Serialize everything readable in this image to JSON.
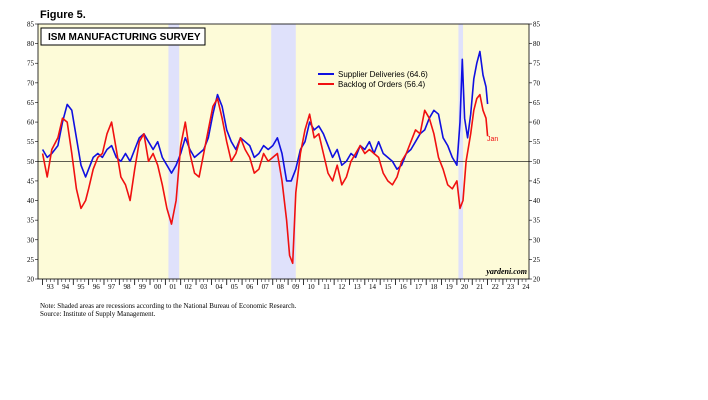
{
  "figure_label": "Figure 5.",
  "chart_data": {
    "type": "line",
    "title": "ISM MANUFACTURING SURVEY",
    "ylim": [
      20,
      85
    ],
    "xlim": [
      1992.7,
      2024.7
    ],
    "y_ticks": [
      20,
      25,
      30,
      35,
      40,
      45,
      50,
      55,
      60,
      65,
      70,
      75,
      80,
      85
    ],
    "x_tick_labels": [
      "93",
      "94",
      "95",
      "96",
      "97",
      "98",
      "99",
      "00",
      "01",
      "02",
      "03",
      "04",
      "05",
      "06",
      "07",
      "08",
      "09",
      "10",
      "11",
      "12",
      "13",
      "14",
      "15",
      "16",
      "17",
      "18",
      "19",
      "20",
      "21",
      "22",
      "23",
      "24"
    ],
    "reference_line": 50,
    "recessions": [
      [
        2001.2,
        2001.9
      ],
      [
        2007.9,
        2009.5
      ],
      [
        2020.1,
        2020.4
      ]
    ],
    "end_label": "Jan",
    "watermark": "yardeni.com",
    "legend_position": "top-right",
    "background_color": "#fdfbd8",
    "recession_color": "#dfe1fb",
    "series": [
      {
        "name": "Supplier Deliveries (64.6)",
        "color": "#1010e0",
        "x": [
          1993.0,
          1993.3,
          1993.6,
          1994.0,
          1994.3,
          1994.6,
          1994.9,
          1995.2,
          1995.5,
          1995.8,
          1996.0,
          1996.3,
          1996.6,
          1996.9,
          1997.2,
          1997.5,
          1997.8,
          1998.1,
          1998.4,
          1998.7,
          1999.0,
          1999.3,
          1999.6,
          1999.9,
          2000.2,
          2000.5,
          2000.8,
          2001.1,
          2001.4,
          2001.7,
          2002.0,
          2002.3,
          2002.6,
          2002.9,
          2003.2,
          2003.5,
          2003.8,
          2004.1,
          2004.4,
          2004.7,
          2005.0,
          2005.3,
          2005.6,
          2005.9,
          2006.2,
          2006.5,
          2006.8,
          2007.1,
          2007.4,
          2007.7,
          2008.0,
          2008.3,
          2008.6,
          2008.9,
          2009.2,
          2009.5,
          2009.8,
          2010.1,
          2010.4,
          2010.7,
          2011.0,
          2011.3,
          2011.6,
          2011.9,
          2012.2,
          2012.5,
          2012.8,
          2013.1,
          2013.4,
          2013.7,
          2014.0,
          2014.3,
          2014.6,
          2014.9,
          2015.2,
          2015.5,
          2015.8,
          2016.1,
          2016.4,
          2016.7,
          2017.0,
          2017.3,
          2017.6,
          2017.9,
          2018.2,
          2018.5,
          2018.8,
          2019.1,
          2019.4,
          2019.7,
          2020.0,
          2020.2,
          2020.35,
          2020.5,
          2020.7,
          2020.9,
          2021.1,
          2021.3,
          2021.5,
          2021.7,
          2021.9,
          2022.0
        ],
        "y": [
          53,
          51,
          52,
          54,
          60,
          64.5,
          63,
          56,
          49,
          46,
          48,
          51,
          52,
          51,
          53,
          54,
          51,
          50,
          52,
          50,
          53,
          56,
          57,
          55,
          53,
          55,
          51,
          49,
          47,
          49,
          52,
          56,
          53,
          51,
          52,
          53,
          56,
          62,
          67,
          64,
          58,
          55,
          53,
          56,
          55,
          54,
          51,
          52,
          54,
          53,
          54,
          56,
          52,
          45,
          45,
          48,
          53,
          55,
          60,
          58,
          59,
          57,
          54,
          51,
          53,
          49,
          50,
          52,
          51,
          54,
          53,
          55,
          52,
          55,
          52,
          51,
          50,
          48,
          49,
          52,
          53,
          55,
          57,
          58,
          61,
          63,
          62,
          56,
          54,
          51,
          49,
          60,
          76,
          61,
          56,
          62,
          71,
          75,
          78,
          72,
          69,
          64.6
        ]
      },
      {
        "name": "Backlog of Orders (56.4)",
        "color": "#f01010",
        "x": [
          1993.0,
          1993.3,
          1993.6,
          1994.0,
          1994.3,
          1994.6,
          1994.9,
          1995.2,
          1995.5,
          1995.8,
          1996.0,
          1996.3,
          1996.6,
          1996.9,
          1997.2,
          1997.5,
          1997.8,
          1998.1,
          1998.4,
          1998.7,
          1999.0,
          1999.3,
          1999.6,
          1999.9,
          2000.2,
          2000.5,
          2000.8,
          2001.1,
          2001.4,
          2001.7,
          2002.0,
          2002.3,
          2002.6,
          2002.9,
          2003.2,
          2003.5,
          2003.8,
          2004.1,
          2004.4,
          2004.7,
          2005.0,
          2005.3,
          2005.6,
          2005.9,
          2006.2,
          2006.5,
          2006.8,
          2007.1,
          2007.4,
          2007.7,
          2008.0,
          2008.3,
          2008.6,
          2008.9,
          2009.1,
          2009.3,
          2009.5,
          2009.8,
          2010.1,
          2010.4,
          2010.7,
          2011.0,
          2011.3,
          2011.6,
          2011.9,
          2012.2,
          2012.5,
          2012.8,
          2013.1,
          2013.4,
          2013.7,
          2014.0,
          2014.3,
          2014.6,
          2014.9,
          2015.2,
          2015.5,
          2015.8,
          2016.1,
          2016.4,
          2016.7,
          2017.0,
          2017.3,
          2017.6,
          2017.9,
          2018.2,
          2018.5,
          2018.8,
          2019.1,
          2019.4,
          2019.7,
          2020.0,
          2020.2,
          2020.4,
          2020.6,
          2020.9,
          2021.1,
          2021.3,
          2021.5,
          2021.7,
          2021.9,
          2022.0
        ],
        "y": [
          52,
          46,
          53,
          56,
          61,
          60,
          52,
          43,
          38,
          40,
          43,
          48,
          51,
          52,
          57,
          60,
          53,
          46,
          44,
          40,
          48,
          55,
          57,
          50,
          52,
          49,
          44,
          38,
          34,
          40,
          54,
          60,
          52,
          47,
          46,
          52,
          58,
          64,
          66,
          61,
          55,
          50,
          52,
          56,
          53,
          51,
          47,
          48,
          52,
          50,
          51,
          52,
          45,
          35,
          26,
          24,
          42,
          52,
          58,
          62,
          56,
          57,
          52,
          47,
          45,
          49,
          44,
          46,
          50,
          52,
          54,
          52,
          53,
          52,
          51,
          47,
          45,
          44,
          46,
          50,
          52,
          55,
          58,
          57,
          63,
          61,
          57,
          51,
          48,
          44,
          43,
          45,
          38,
          40,
          50,
          57,
          63,
          66,
          67,
          63,
          61,
          56.4
        ]
      }
    ]
  },
  "notes": {
    "line1": "Note: Shaded areas are recessions according to the National Bureau of Economic Research.",
    "line2": "Source: Institute of Supply Management."
  }
}
